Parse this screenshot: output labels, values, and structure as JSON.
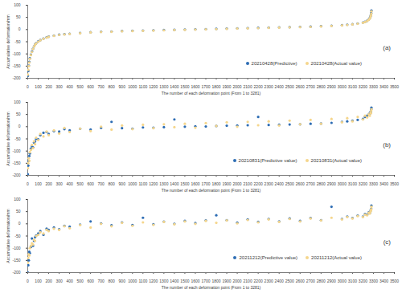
{
  "chart_data": [
    {
      "type": "scatter",
      "annotations": [
        "(a)"
      ],
      "x_label": "The number of each deformation point (From 1 to 3281)",
      "y_label": "Accumulative deformation/mm",
      "x": [
        1,
        5,
        10,
        15,
        20,
        30,
        40,
        50,
        60,
        70,
        80,
        100,
        120,
        150,
        180,
        200,
        250,
        300,
        350,
        400,
        500,
        600,
        700,
        800,
        900,
        1000,
        1100,
        1200,
        1300,
        1400,
        1500,
        1600,
        1700,
        1800,
        1900,
        2000,
        2100,
        2200,
        2300,
        2400,
        2500,
        2600,
        2700,
        2800,
        2900,
        3000,
        3050,
        3100,
        3150,
        3200,
        3220,
        3240,
        3255,
        3265,
        3272,
        3276,
        3279,
        3281
      ],
      "series": [
        {
          "name": "20210428(Predictive)",
          "color": "#2e6db4",
          "marker": "circle",
          "values": [
            -190,
            -170,
            -148,
            -133,
            -118,
            -103,
            -90,
            -79,
            -69,
            -61,
            -56,
            -49,
            -43,
            -37,
            -32,
            -29,
            -25,
            -21,
            -19,
            -17,
            -14,
            -11,
            -9,
            -8,
            -6,
            -5,
            -4,
            -3,
            -2,
            -1,
            0,
            1,
            2,
            3,
            4,
            5,
            6,
            7,
            8,
            9,
            10,
            11,
            12,
            14,
            16,
            18,
            20,
            22,
            25,
            29,
            32,
            36,
            41,
            47,
            54,
            60,
            68,
            78
          ]
        },
        {
          "name": "20210428(Actual value)",
          "color": "#f5d68c",
          "marker": "circle",
          "values": [
            -185,
            -165,
            -150,
            -135,
            -120,
            -105,
            -92,
            -80,
            -70,
            -62,
            -57,
            -50,
            -44,
            -38,
            -33,
            -30,
            -26,
            -22,
            -20,
            -18,
            -15,
            -12,
            -10,
            -9,
            -7,
            -6,
            -5,
            -4,
            -3,
            -2,
            -1,
            0,
            1,
            2,
            3,
            4,
            5,
            6,
            7,
            8,
            9,
            10,
            11,
            13,
            15,
            17,
            19,
            21,
            24,
            28,
            31,
            35,
            40,
            45,
            52,
            58,
            65,
            75
          ]
        }
      ],
      "xlim": [
        0,
        3500
      ],
      "xticks": [
        0,
        100,
        200,
        300,
        400,
        500,
        600,
        700,
        800,
        900,
        1000,
        1100,
        1200,
        1300,
        1400,
        1500,
        1600,
        1700,
        1800,
        1900,
        2000,
        2100,
        2200,
        2300,
        2400,
        2500,
        2600,
        2700,
        2800,
        2900,
        3000,
        3100,
        3200,
        3300,
        3400,
        3500
      ],
      "ylim": [
        -200,
        100
      ],
      "yticks": [
        -200,
        -150,
        -100,
        -50,
        0,
        50,
        100
      ],
      "grid": false,
      "legend": "bottom-right"
    },
    {
      "type": "scatter",
      "annotations": [
        "(b)"
      ],
      "x_label": "The number of each deformation point (From 1 to 3281)",
      "y_label": "Accumulative deformation/mm",
      "x": [
        1,
        5,
        10,
        15,
        20,
        30,
        40,
        50,
        60,
        70,
        80,
        100,
        120,
        150,
        180,
        200,
        250,
        300,
        350,
        400,
        500,
        600,
        700,
        800,
        900,
        1000,
        1100,
        1200,
        1300,
        1400,
        1500,
        1600,
        1700,
        1800,
        1900,
        2000,
        2100,
        2200,
        2300,
        2400,
        2500,
        2600,
        2700,
        2800,
        2900,
        3000,
        3050,
        3100,
        3150,
        3200,
        3220,
        3240,
        3255,
        3265,
        3272,
        3276,
        3279,
        3281
      ],
      "series": [
        {
          "name": "20210831(Predictive value)",
          "color": "#2e6db4",
          "marker": "circle",
          "values": [
            -195,
            -160,
            -140,
            -120,
            -110,
            -90,
            -80,
            -85,
            -65,
            -60,
            -50,
            -52,
            -35,
            -25,
            -22,
            -30,
            -18,
            -20,
            -10,
            -15,
            -8,
            -12,
            -5,
            20,
            -6,
            -8,
            -3,
            -4,
            -2,
            30,
            0,
            2,
            1,
            3,
            4,
            5,
            6,
            40,
            7,
            8,
            9,
            10,
            12,
            13,
            16,
            20,
            22,
            25,
            28,
            32,
            40,
            45,
            50,
            55,
            60,
            62,
            70,
            78
          ]
        },
        {
          "name": "20210831(Actual value)",
          "color": "#f5d68c",
          "marker": "circle",
          "values": [
            -170,
            -150,
            -130,
            -140,
            -105,
            -95,
            -75,
            -88,
            -60,
            -72,
            -45,
            -55,
            -30,
            -40,
            -20,
            -35,
            -15,
            -28,
            -5,
            -22,
            -8,
            -18,
            0,
            -12,
            5,
            -10,
            8,
            -6,
            10,
            -2,
            12,
            -4,
            15,
            3,
            18,
            0,
            20,
            6,
            22,
            5,
            25,
            10,
            28,
            12,
            32,
            18,
            35,
            22,
            40,
            30,
            45,
            38,
            50,
            45,
            58,
            55,
            65,
            72
          ]
        }
      ],
      "xlim": [
        0,
        3500
      ],
      "xticks": [
        0,
        100,
        200,
        300,
        400,
        500,
        600,
        700,
        800,
        900,
        1000,
        1100,
        1200,
        1300,
        1400,
        1500,
        1600,
        1700,
        1800,
        1900,
        2000,
        2100,
        2200,
        2300,
        2400,
        2500,
        2600,
        2700,
        2800,
        2900,
        3000,
        3100,
        3200,
        3300,
        3400,
        3500
      ],
      "ylim": [
        -200,
        100
      ],
      "yticks": [
        -200,
        -150,
        -100,
        -50,
        0,
        50,
        100
      ],
      "grid": false,
      "legend": "bottom-right"
    },
    {
      "type": "scatter",
      "annotations": [
        "(c)"
      ],
      "x_label": "The number of each deformation point (From 1 to 3281)",
      "y_label": "Accumulative deformation/mm",
      "x": [
        1,
        5,
        10,
        15,
        20,
        30,
        40,
        50,
        60,
        70,
        80,
        100,
        120,
        150,
        180,
        200,
        250,
        300,
        350,
        400,
        500,
        600,
        700,
        800,
        900,
        1000,
        1100,
        1200,
        1300,
        1400,
        1500,
        1600,
        1700,
        1800,
        1900,
        2000,
        2100,
        2200,
        2300,
        2400,
        2500,
        2600,
        2700,
        2800,
        2900,
        3000,
        3050,
        3100,
        3150,
        3200,
        3220,
        3240,
        3255,
        3265,
        3272,
        3276,
        3279,
        3281
      ],
      "series": [
        {
          "name": "20211212(Predictive value)",
          "color": "#2e6db4",
          "marker": "circle",
          "values": [
            -200,
            -170,
            -150,
            -115,
            -120,
            -95,
            -60,
            -90,
            -70,
            -55,
            -48,
            -40,
            -30,
            -45,
            -20,
            -25,
            -15,
            -22,
            -8,
            -12,
            -3,
            10,
            2,
            -6,
            6,
            -5,
            25,
            -2,
            9,
            0,
            12,
            3,
            14,
            35,
            15,
            5,
            18,
            8,
            20,
            10,
            22,
            12,
            24,
            15,
            70,
            20,
            30,
            24,
            34,
            30,
            40,
            38,
            47,
            44,
            52,
            58,
            62,
            75
          ]
        },
        {
          "name": "20211212(Actual value)",
          "color": "#f5d68c",
          "marker": "circle",
          "values": [
            -160,
            -140,
            -125,
            -130,
            -100,
            -90,
            -80,
            -85,
            -65,
            -70,
            -50,
            -45,
            -35,
            -40,
            -25,
            -30,
            -20,
            -25,
            -10,
            -18,
            -5,
            -15,
            0,
            -10,
            4,
            -8,
            6,
            -4,
            8,
            -2,
            10,
            0,
            12,
            4,
            14,
            2,
            16,
            6,
            18,
            8,
            20,
            10,
            22,
            14,
            25,
            18,
            28,
            22,
            32,
            28,
            38,
            35,
            45,
            42,
            50,
            55,
            60,
            70
          ]
        }
      ],
      "xlim": [
        0,
        3500
      ],
      "xticks": [
        0,
        100,
        200,
        300,
        400,
        500,
        600,
        700,
        800,
        900,
        1000,
        1100,
        1200,
        1300,
        1400,
        1500,
        1600,
        1700,
        1800,
        1900,
        2000,
        2100,
        2200,
        2300,
        2400,
        2500,
        2600,
        2700,
        2800,
        2900,
        3000,
        3100,
        3200,
        3300,
        3400,
        3500
      ],
      "ylim": [
        -200,
        100
      ],
      "yticks": [
        -200,
        -150,
        -100,
        -50,
        0,
        50,
        100
      ],
      "grid": false,
      "legend": "bottom-right"
    }
  ]
}
